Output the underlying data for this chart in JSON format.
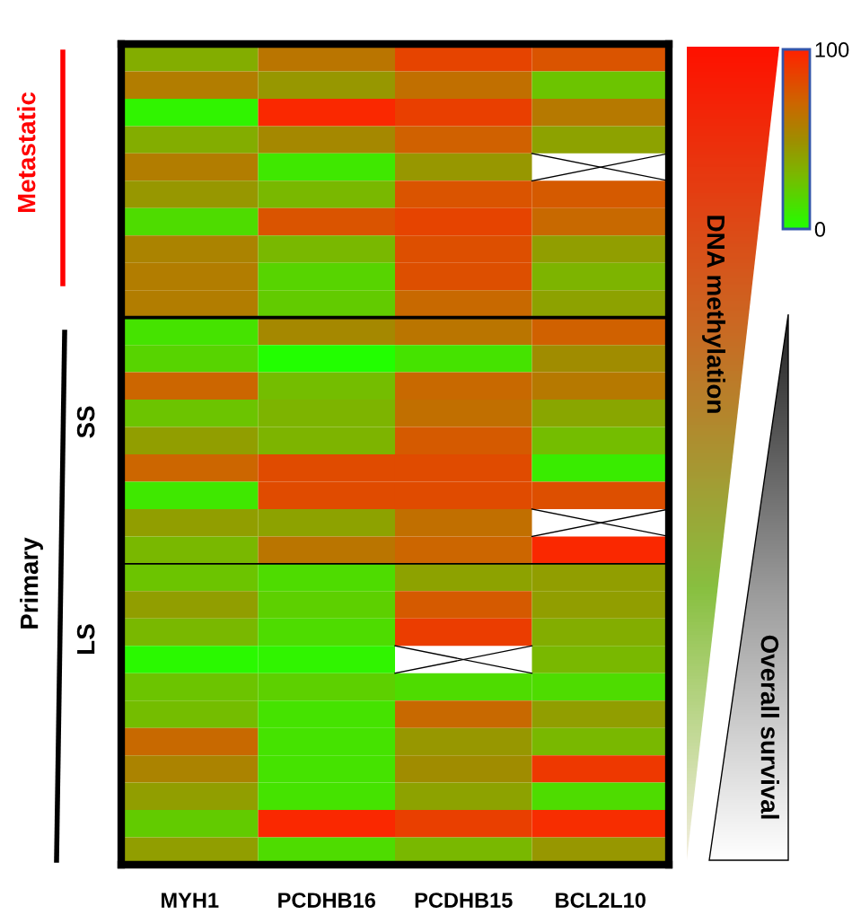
{
  "chart_data": {
    "type": "heatmap",
    "categories": [
      "MYH1",
      "PCDHB16",
      "PCDHB15",
      "BCL2L10"
    ],
    "y_categories": [
      null,
      null,
      null,
      null,
      null,
      null,
      null,
      null,
      null,
      null,
      null,
      null,
      null,
      null,
      null,
      null,
      null,
      null,
      null,
      null,
      null,
      null,
      null,
      null,
      null,
      null,
      null,
      null,
      null,
      null
    ],
    "cells": [
      [
        35,
        62,
        85,
        78
      ],
      [
        58,
        45,
        65,
        25
      ],
      [
        5,
        97,
        87,
        60
      ],
      [
        35,
        52,
        72,
        40
      ],
      [
        58,
        10,
        45,
        null
      ],
      [
        45,
        30,
        78,
        75
      ],
      [
        15,
        78,
        85,
        68
      ],
      [
        55,
        30,
        80,
        42
      ],
      [
        58,
        18,
        80,
        32
      ],
      [
        58,
        22,
        68,
        40
      ],
      [
        12,
        52,
        62,
        72
      ],
      [
        18,
        0,
        12,
        50
      ],
      [
        70,
        28,
        68,
        60
      ],
      [
        25,
        32,
        65,
        38
      ],
      [
        42,
        32,
        75,
        28
      ],
      [
        70,
        82,
        82,
        8
      ],
      [
        10,
        82,
        82,
        80
      ],
      [
        42,
        40,
        65,
        null
      ],
      [
        30,
        62,
        70,
        97
      ],
      [
        25,
        15,
        40,
        42
      ],
      [
        42,
        20,
        75,
        42
      ],
      [
        30,
        15,
        88,
        35
      ],
      [
        3,
        5,
        null,
        30
      ],
      [
        25,
        20,
        15,
        15
      ],
      [
        28,
        12,
        68,
        42
      ],
      [
        68,
        12,
        45,
        30
      ],
      [
        55,
        12,
        50,
        90
      ],
      [
        42,
        12,
        40,
        15
      ],
      [
        22,
        97,
        87,
        95
      ],
      [
        42,
        15,
        30,
        45
      ]
    ],
    "clim": [
      0,
      100
    ],
    "cticks": [
      0,
      100
    ],
    "annotations": [
      "Metastatic",
      "Primary",
      "SS",
      "LS",
      "DNA methylation",
      "Overall survival"
    ]
  }
}
